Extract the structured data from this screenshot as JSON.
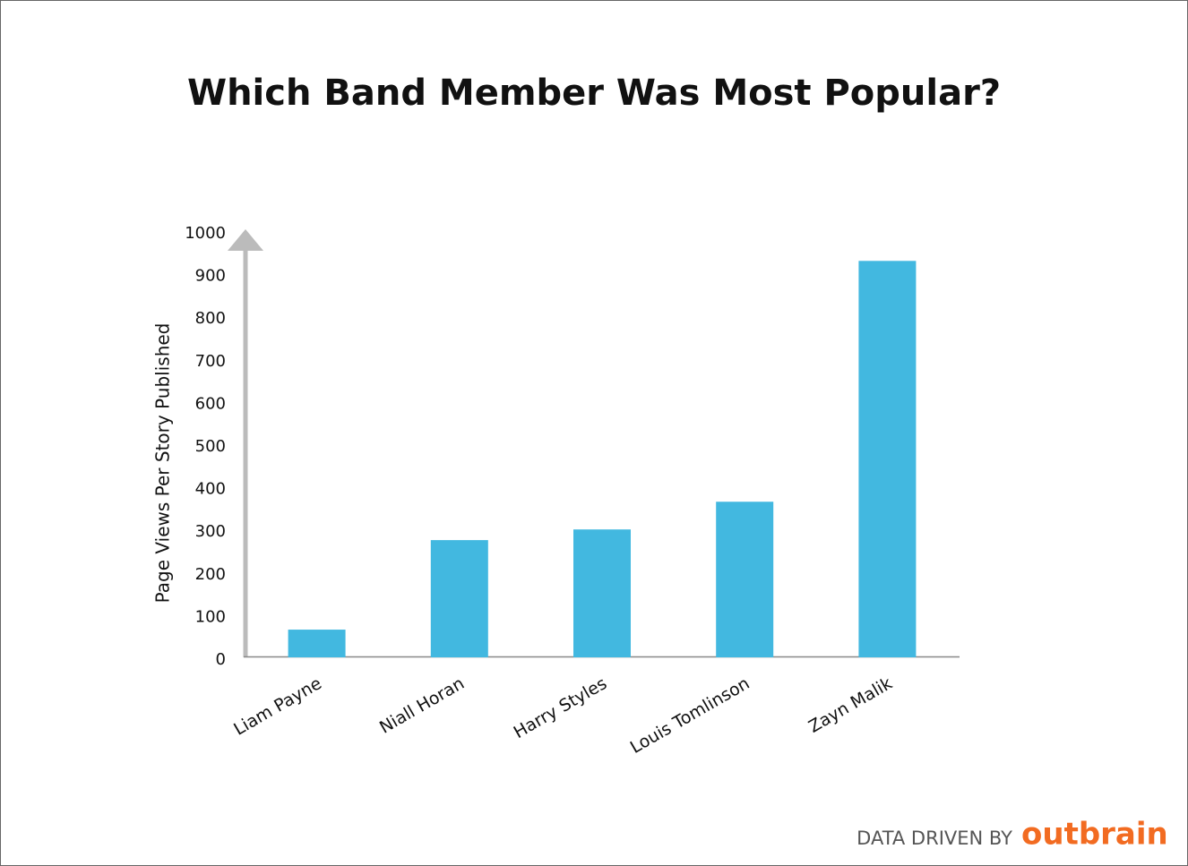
{
  "chart_data": {
    "type": "bar",
    "title": "Which Band Member Was Most Popular?",
    "y_label": "Page Views Per Story Published",
    "categories": [
      "Liam Payne",
      "Niall Horan",
      "Harry Styles",
      "Louis Tomlinson",
      "Zayn Malik"
    ],
    "values": [
      65,
      275,
      300,
      365,
      930
    ],
    "color": "#42b8e0",
    "ylim": [
      0,
      1000
    ],
    "yticks": [
      0,
      100,
      200,
      300,
      400,
      500,
      600,
      700,
      800,
      900,
      1000
    ],
    "grid": false
  },
  "footer": {
    "credit": "DATA DRIVEN BY",
    "brand": "outbrain"
  }
}
